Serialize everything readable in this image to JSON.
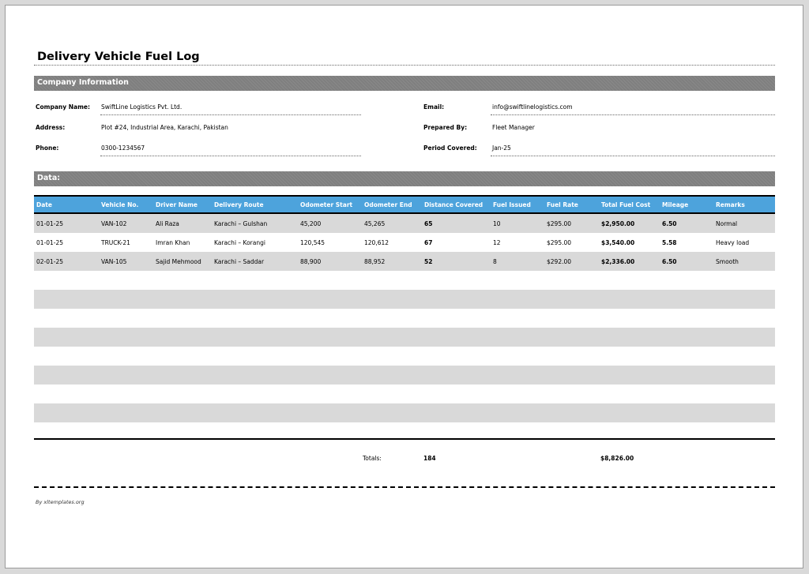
{
  "title": "Delivery Vehicle Fuel Log",
  "company_section": {
    "heading": "Company Information",
    "left": [
      {
        "label": "Company Name:",
        "value": "SwiftLine Logistics Pvt. Ltd."
      },
      {
        "label": "Address:",
        "value": "Plot #24, Industrial Area, Karachi, Pakistan"
      },
      {
        "label": "Phone:",
        "value": "0300-1234567"
      }
    ],
    "right": [
      {
        "label": "Email:",
        "value": "info@swiftlinelogistics.com"
      },
      {
        "label": "Prepared By:",
        "value": "Fleet Manager"
      },
      {
        "label": "Period Covered:",
        "value": "Jan-25"
      }
    ]
  },
  "data_section": {
    "heading": "Data:"
  },
  "table": {
    "columns": [
      "Date",
      "Vehicle No.",
      "Driver Name",
      "Delivery Route",
      "Odometer Start",
      "Odometer End",
      "Distance Covered",
      "Fuel Issued",
      "Fuel Rate",
      "Total Fuel Cost",
      "Mileage",
      "Remarks"
    ],
    "rows": [
      [
        "01-01-25",
        "VAN-102",
        "Ali Raza",
        "Karachi – Gulshan",
        "45,200",
        "45,265",
        "65",
        "10",
        "$295.00",
        "$2,950.00",
        "6.50",
        "Normal"
      ],
      [
        "01-01-25",
        "TRUCK-21",
        "Imran Khan",
        "Karachi – Korangi",
        "120,545",
        "120,612",
        "67",
        "12",
        "$295.00",
        "$3,540.00",
        "5.58",
        "Heavy load"
      ],
      [
        "02-01-25",
        "VAN-105",
        "Sajid Mehmood",
        "Karachi – Saddar",
        "88,900",
        "88,952",
        "52",
        "8",
        "$292.00",
        "$2,336.00",
        "6.50",
        "Smooth"
      ]
    ]
  },
  "totals": {
    "label": "Totals:",
    "distance": "184",
    "total_cost": "$8,826.00"
  },
  "footer": "By xltemplates.org",
  "colors": {
    "header_blue": "#4da3dc",
    "band_gray": "#7f7f7f",
    "row_gray": "#d9d9d9"
  }
}
